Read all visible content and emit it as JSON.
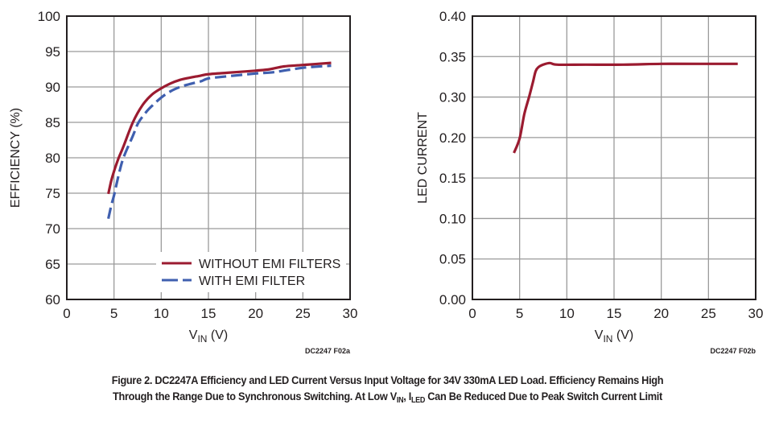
{
  "chart_data": [
    {
      "id": "efficiency",
      "type": "line",
      "title": "",
      "xlabel": "V",
      "xlabel_sub": "IN",
      "xlabel_suffix": " (V)",
      "ylabel": "EFFICIENCY (%)",
      "xlim": [
        0,
        30
      ],
      "ylim": [
        60,
        100
      ],
      "xticks": [
        0,
        5,
        10,
        15,
        20,
        25,
        30
      ],
      "xtick_labels": [
        "0",
        "5",
        "10",
        "15",
        "20",
        "25",
        "30"
      ],
      "yticks": [
        60,
        65,
        70,
        75,
        80,
        85,
        90,
        95,
        100
      ],
      "ytick_labels": [
        "60",
        "65",
        "70",
        "75",
        "80",
        "85",
        "90",
        "95",
        "100"
      ],
      "grid": true,
      "legend_position": "bottom-right",
      "footnote": "DC2247 F02a",
      "series": [
        {
          "name": "WITHOUT EMI FILTERS",
          "color": "#9b1b30",
          "dash": "solid",
          "x": [
            4.4,
            4.7,
            5.0,
            5.5,
            6.0,
            7.0,
            8.0,
            9.0,
            10.0,
            11.0,
            12.0,
            13.0,
            14.2,
            15.0,
            17.0,
            20.0,
            21.5,
            23.0,
            25.0,
            28.0
          ],
          "y": [
            74.9,
            76.7,
            78.1,
            80.0,
            81.6,
            85.0,
            87.4,
            88.9,
            89.8,
            90.5,
            91.0,
            91.3,
            91.6,
            91.8,
            92.0,
            92.3,
            92.5,
            92.9,
            93.1,
            93.4
          ]
        },
        {
          "name": "WITH EMI FILTER",
          "color": "#3f5faf",
          "dash": "dashed",
          "x": [
            4.4,
            4.7,
            5.0,
            5.5,
            6.0,
            7.0,
            7.6,
            8.5,
            9.0,
            10.0,
            11.0,
            12.0,
            13.0,
            14.2,
            15.0,
            17.0,
            20.0,
            22.0,
            25.0,
            28.0
          ],
          "y": [
            71.4,
            73.2,
            74.7,
            77.6,
            80.0,
            83.1,
            85.0,
            86.6,
            87.3,
            88.5,
            89.4,
            90.0,
            90.4,
            90.8,
            91.2,
            91.5,
            91.9,
            92.1,
            92.7,
            93.0
          ]
        }
      ]
    },
    {
      "id": "led-current",
      "type": "line",
      "title": "",
      "xlabel": "V",
      "xlabel_sub": "IN",
      "xlabel_suffix": " (V)",
      "ylabel": "LED CURRENT",
      "xlim": [
        0,
        30
      ],
      "ylim": [
        0,
        0.4
      ],
      "xticks": [
        0,
        5,
        10,
        15,
        20,
        25,
        30
      ],
      "xtick_labels": [
        "0",
        "5",
        "10",
        "15",
        "20",
        "25",
        "30"
      ],
      "yticks": [
        0.0,
        0.05,
        0.1,
        0.15,
        0.2,
        0.3,
        0.35,
        0.4
      ],
      "ytick_labels": [
        "0.00",
        "0.05",
        "0.10",
        "0.15",
        "0.20",
        "0.30",
        "0.35",
        "0.40"
      ],
      "grid": true,
      "legend_position": "none",
      "footnote": "DC2247 F02b",
      "series": [
        {
          "name": "LED CURRENT",
          "color": "#9b1b30",
          "dash": "solid",
          "x": [
            4.4,
            5.0,
            5.5,
            6.0,
            6.4,
            6.7,
            7.0,
            7.5,
            8.2,
            9.0,
            12.0,
            16.0,
            20.0,
            24.0,
            28.1
          ],
          "y": [
            0.181,
            0.199,
            0.258,
            0.3,
            0.318,
            0.332,
            0.337,
            0.34,
            0.342,
            0.34,
            0.34,
            0.34,
            0.341,
            0.341,
            0.341
          ]
        }
      ]
    }
  ],
  "caption": {
    "line1": "Figure 2. DC2247A Efficiency and LED Current Versus Input Voltage for 34V 330mA LED Load. Efficiency Remains High",
    "line2_a": "Through the Range Due to Synchronous Switching. At Low V",
    "line2_sub1": "IN",
    "line2_b": ", I",
    "line2_sub2": "LED",
    "line2_c": " Can Be Reduced Due to Peak Switch Current Limit"
  }
}
